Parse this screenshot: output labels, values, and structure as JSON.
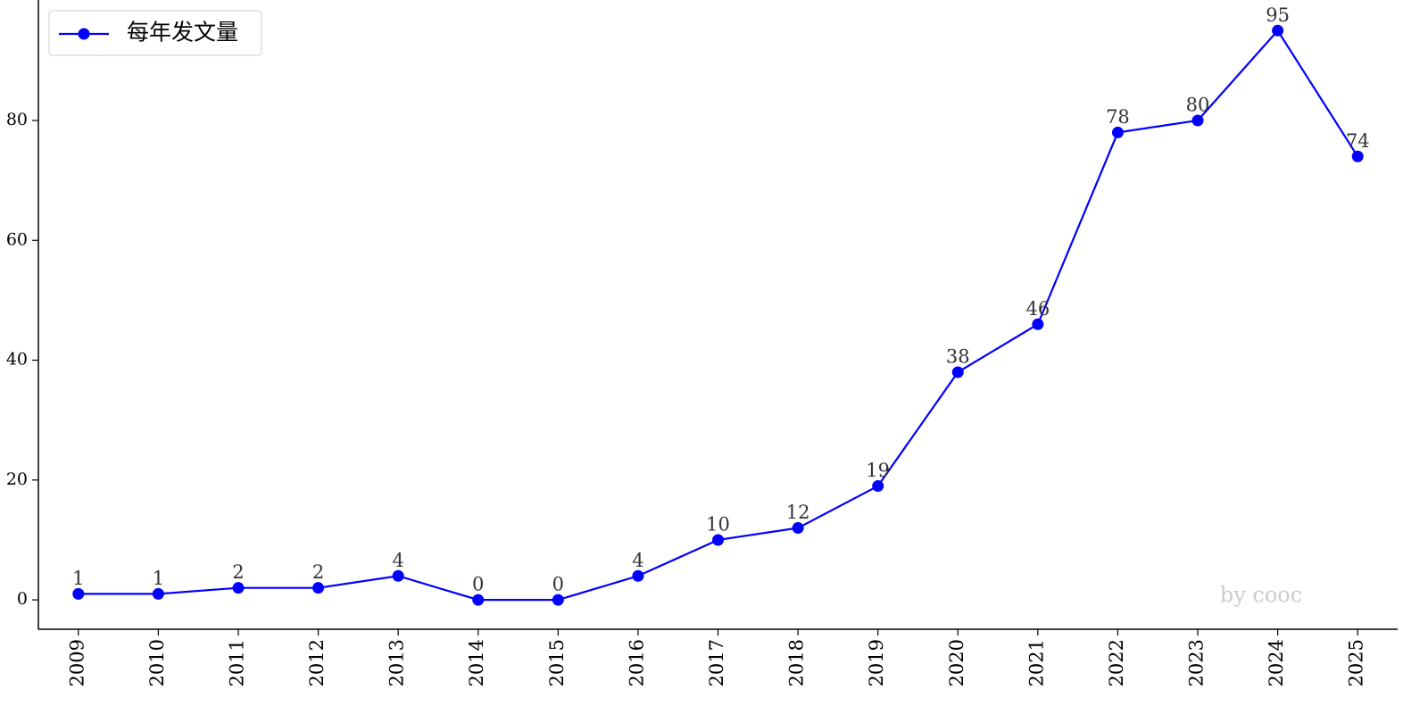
{
  "chart_data": {
    "type": "line",
    "x": [
      2009,
      2010,
      2011,
      2012,
      2013,
      2014,
      2015,
      2016,
      2017,
      2018,
      2019,
      2020,
      2021,
      2022,
      2023,
      2024,
      2025
    ],
    "series": [
      {
        "name": "每年发文量",
        "color": "#0000ff",
        "values": [
          1,
          1,
          2,
          2,
          4,
          0,
          0,
          4,
          10,
          12,
          19,
          38,
          46,
          78,
          80,
          95,
          74
        ]
      }
    ],
    "xlim": [
      2008.5,
      2025.5
    ],
    "xticks": [
      2009,
      2010,
      2011,
      2012,
      2013,
      2014,
      2015,
      2016,
      2017,
      2018,
      2019,
      2020,
      2021,
      2022,
      2023,
      2024,
      2025
    ],
    "ylim": [
      -4.75,
      99.75
    ],
    "yticks": [
      0,
      20,
      40,
      60,
      80
    ],
    "legend": "upper-left",
    "watermark": "by cooc"
  }
}
